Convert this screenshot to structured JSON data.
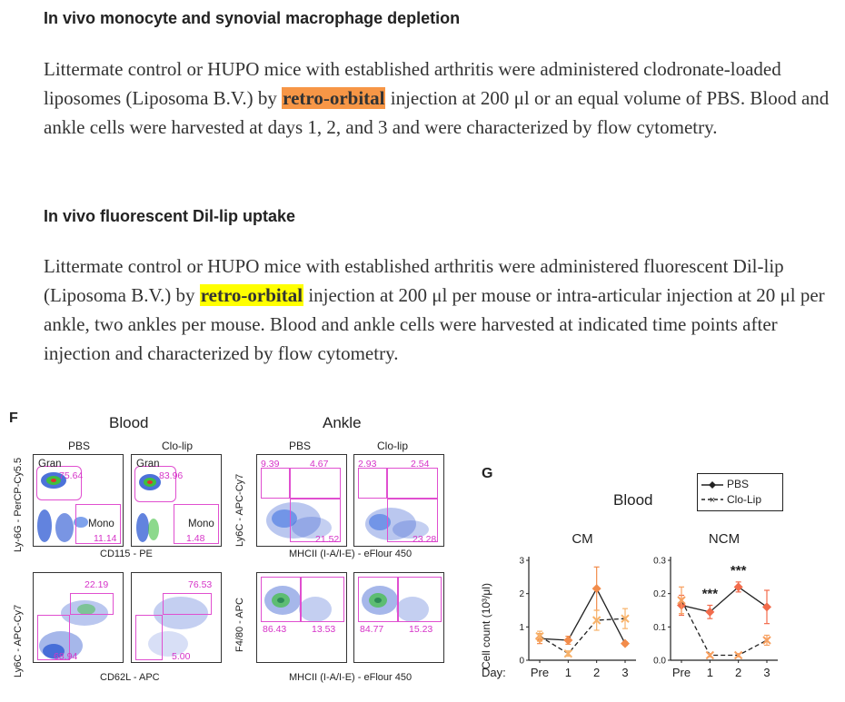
{
  "sections": [
    {
      "heading": "In vivo monocyte and synovial macrophage depletion",
      "p_before": "Littermate control or HUPO mice with established arthritis were administered clodronate-loaded liposomes (Liposoma B.V.) by ",
      "highlight": "retro-orbital",
      "p_after": " injection at 200 μl or an equal volume of PBS. Blood and ankle cells were harvested at days 1, 2, and 3 and were characterized by flow cytometry."
    },
    {
      "heading": "In vivo fluorescent Dil-lip uptake",
      "p_before": "Littermate control or HUPO mice with established arthritis were administered fluorescent Dil-lip (Liposoma B.V.) by ",
      "highlight": "retro-orbital",
      "p_after": " injection at 200 μl per mouse or intra-articular injection at 20 μl per ankle, two ankles per mouse. Blood and ankle cells were harvested at indicated time points after injection and characterized by flow cytometry."
    }
  ],
  "figure_f": {
    "letter": "F",
    "blood_title": "Blood",
    "ankle_title": "Ankle",
    "col_pbs": "PBS",
    "col_clolip": "Clo-lip",
    "ankle_col_pbs": "PBS",
    "ankle_col_clolip": "Clo-lip",
    "row1_blood_ylabel": "Ly-6G - PerCP-Cy5.5",
    "row1_blood_xlabel": "CD115 - PE",
    "row1_ankle_ylabel": "Ly6C - APC-Cy7",
    "row1_ankle_xlabel": "MHCII (I-A/I-E) - eFlour 450",
    "row2_blood_ylabel": "Ly6C - APC-Cy7",
    "row2_blood_xlabel": "CD62L - APC",
    "row2_ankle_ylabel": "F4/80 - APC",
    "row2_ankle_xlabel": "MHCII (I-A/I-E) - eFlour 450",
    "gran_label": "Gran",
    "mono_label": "Mono",
    "blood_pbs_gran": "75.64",
    "blood_pbs_mono": "11.14",
    "blood_clo_gran": "83.96",
    "blood_clo_mono": "1.48",
    "ankle_pbs_tl": "9.39",
    "ankle_pbs_tr": "4.67",
    "ankle_pbs_br": "21.52",
    "ankle_clo_tl": "2.93",
    "ankle_clo_tr": "2.54",
    "ankle_clo_br": "23.28",
    "blood2_pbs_top": "22.19",
    "blood2_pbs_bot": "68.94",
    "blood2_clo_top": "76.53",
    "blood2_clo_bot": "5.00",
    "ankle2_pbs_l": "86.43",
    "ankle2_pbs_r": "13.53",
    "ankle2_clo_l": "84.77",
    "ankle2_clo_r": "15.23"
  },
  "figure_g": {
    "letter": "G",
    "title": "Blood",
    "legend_pbs": "PBS",
    "legend_clolip": "Clo-Lip",
    "ylabel": "Cell count (10³/μl)",
    "day_label": "Day:",
    "sig1": "***",
    "sig2": "***"
  },
  "chart_data": [
    {
      "type": "line",
      "title": "CM",
      "x": [
        "Pre",
        "1",
        "2",
        "3"
      ],
      "ylim": [
        0,
        3
      ],
      "yticks": [
        "0",
        "1",
        "2",
        "3"
      ],
      "series": [
        {
          "name": "PBS",
          "values": [
            0.65,
            0.6,
            2.15,
            0.5
          ],
          "errors": [
            0.15,
            0.12,
            0.65,
            0.05
          ],
          "color": "#f28c4b"
        },
        {
          "name": "Clo-Lip",
          "values": [
            0.72,
            0.2,
            1.2,
            1.25
          ],
          "errors": [
            0.15,
            0.08,
            0.3,
            0.3
          ],
          "color": "#f7b26a"
        }
      ]
    },
    {
      "type": "line",
      "title": "NCM",
      "x": [
        "Pre",
        "1",
        "2",
        "3"
      ],
      "ylim": [
        0,
        0.3
      ],
      "yticks": [
        "0.0",
        "0.1",
        "0.2",
        "0.3"
      ],
      "series": [
        {
          "name": "PBS",
          "values": [
            0.165,
            0.145,
            0.22,
            0.16
          ],
          "errors": [
            0.03,
            0.02,
            0.015,
            0.05
          ],
          "color": "#f26b4b"
        },
        {
          "name": "Clo-Lip",
          "values": [
            0.18,
            0.015,
            0.015,
            0.06
          ],
          "errors": [
            0.04,
            0.005,
            0.005,
            0.015
          ],
          "color": "#f7a060"
        }
      ]
    }
  ]
}
